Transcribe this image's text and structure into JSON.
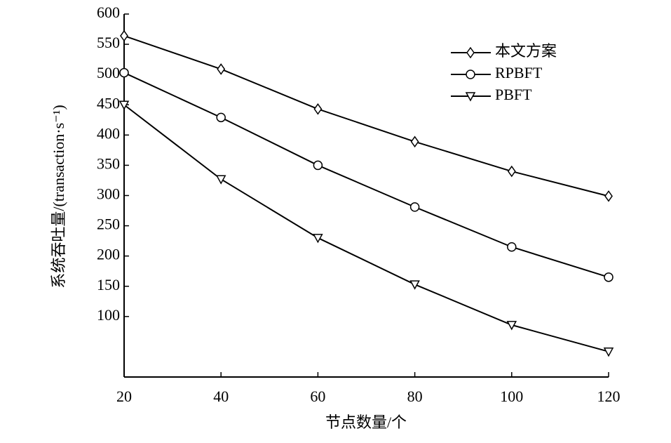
{
  "chart_data": {
    "type": "line",
    "x_label": "节点数量/个",
    "y_label": "系统吞吐量/(transaction·s⁻¹)",
    "x": [
      20,
      40,
      60,
      80,
      100,
      120
    ],
    "series": [
      {
        "name": "本文方案",
        "color": "#000000",
        "marker": "diamond",
        "values": [
          564,
          509,
          443,
          389,
          340,
          299
        ]
      },
      {
        "name": "RPBFT",
        "color": "#000000",
        "marker": "circle",
        "values": [
          503,
          429,
          350,
          281,
          215,
          165
        ]
      },
      {
        "name": "PBFT",
        "color": "#000000",
        "marker": "triangle-down",
        "values": [
          450,
          327,
          230,
          153,
          86,
          42
        ]
      }
    ],
    "xlim": [
      20,
      120
    ],
    "xticks": [
      20,
      40,
      60,
      80,
      100,
      120
    ],
    "ylim": [
      0,
      600
    ],
    "yticks": [
      100,
      150,
      200,
      250,
      300,
      350,
      400,
      450,
      500,
      550,
      600
    ],
    "grid": false,
    "legend": "upper right"
  }
}
